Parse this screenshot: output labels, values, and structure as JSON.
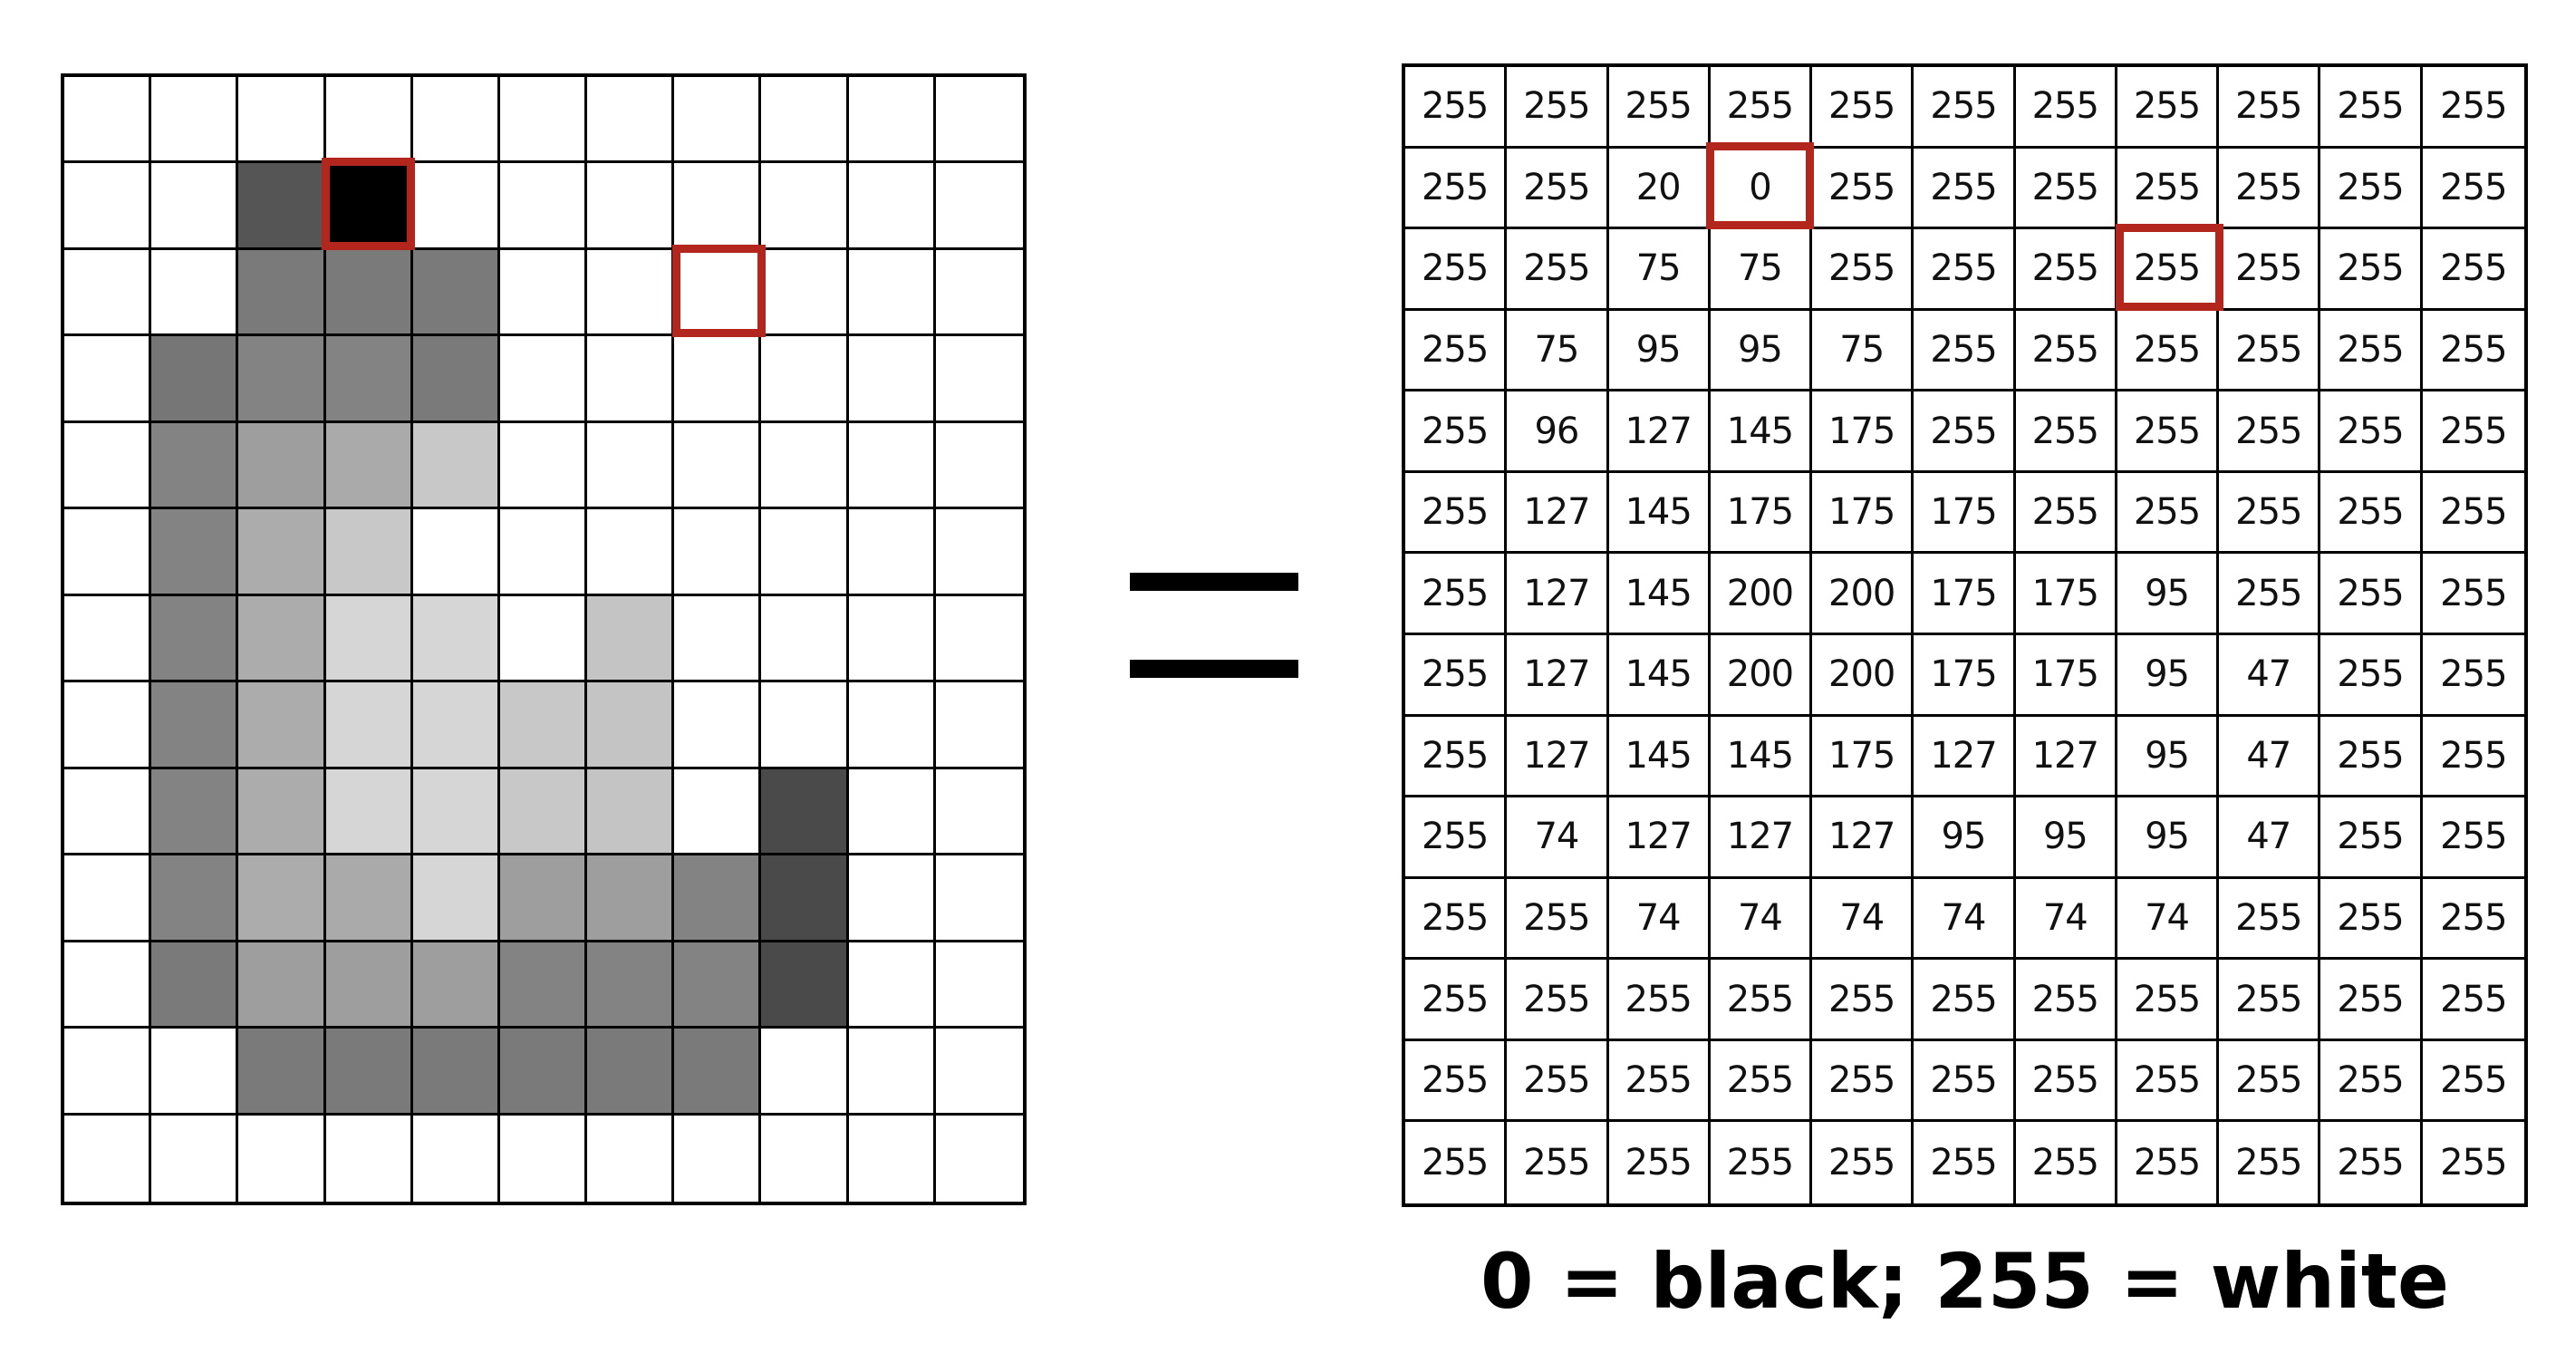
{
  "grid_columns": 11,
  "pixel_rows": 13,
  "value_rows": 14,
  "pixel_values": [
    [
      255,
      255,
      255,
      255,
      255,
      255,
      255,
      255,
      255,
      255,
      255
    ],
    [
      255,
      255,
      85,
      0,
      255,
      255,
      255,
      255,
      255,
      255,
      255
    ],
    [
      255,
      255,
      122,
      122,
      122,
      255,
      255,
      255,
      255,
      255,
      255
    ],
    [
      255,
      118,
      131,
      131,
      122,
      255,
      255,
      255,
      255,
      255,
      255
    ],
    [
      255,
      131,
      158,
      170,
      200,
      255,
      255,
      255,
      255,
      255,
      255
    ],
    [
      255,
      131,
      172,
      200,
      255,
      255,
      255,
      255,
      255,
      255,
      255
    ],
    [
      255,
      131,
      172,
      214,
      214,
      255,
      196,
      255,
      255,
      255,
      255
    ],
    [
      255,
      131,
      172,
      214,
      214,
      200,
      196,
      255,
      255,
      255,
      255
    ],
    [
      255,
      131,
      172,
      214,
      214,
      200,
      196,
      255,
      74,
      255,
      255
    ],
    [
      255,
      131,
      172,
      170,
      214,
      158,
      158,
      131,
      74,
      255,
      255
    ],
    [
      255,
      122,
      158,
      158,
      158,
      131,
      131,
      131,
      74,
      255,
      255
    ],
    [
      255,
      255,
      122,
      122,
      122,
      122,
      122,
      122,
      255,
      255,
      255
    ],
    [
      255,
      255,
      255,
      255,
      255,
      255,
      255,
      255,
      255,
      255,
      255
    ]
  ],
  "value_table": [
    [
      "255",
      "255",
      "255",
      "255",
      "255",
      "255",
      "255",
      "255",
      "255",
      "255",
      "255"
    ],
    [
      "255",
      "255",
      "20",
      "0",
      "255",
      "255",
      "255",
      "255",
      "255",
      "255",
      "255"
    ],
    [
      "255",
      "255",
      "75",
      "75",
      "255",
      "255",
      "255",
      "255",
      "255",
      "255",
      "255"
    ],
    [
      "255",
      "75",
      "95",
      "95",
      "75",
      "255",
      "255",
      "255",
      "255",
      "255",
      "255"
    ],
    [
      "255",
      "96",
      "127",
      "145",
      "175",
      "255",
      "255",
      "255",
      "255",
      "255",
      "255"
    ],
    [
      "255",
      "127",
      "145",
      "175",
      "175",
      "175",
      "255",
      "255",
      "255",
      "255",
      "255"
    ],
    [
      "255",
      "127",
      "145",
      "200",
      "200",
      "175",
      "175",
      "95",
      "255",
      "255",
      "255"
    ],
    [
      "255",
      "127",
      "145",
      "200",
      "200",
      "175",
      "175",
      "95",
      "47",
      "255",
      "255"
    ],
    [
      "255",
      "127",
      "145",
      "145",
      "175",
      "127",
      "127",
      "95",
      "47",
      "255",
      "255"
    ],
    [
      "255",
      "74",
      "127",
      "127",
      "127",
      "95",
      "95",
      "95",
      "47",
      "255",
      "255"
    ],
    [
      "255",
      "255",
      "74",
      "74",
      "74",
      "74",
      "74",
      "74",
      "255",
      "255",
      "255"
    ],
    [
      "255",
      "255",
      "255",
      "255",
      "255",
      "255",
      "255",
      "255",
      "255",
      "255",
      "255"
    ],
    [
      "255",
      "255",
      "255",
      "255",
      "255",
      "255",
      "255",
      "255",
      "255",
      "255",
      "255"
    ],
    [
      "255",
      "255",
      "255",
      "255",
      "255",
      "255",
      "255",
      "255",
      "255",
      "255",
      "255"
    ]
  ],
  "highlighted_cells": [
    {
      "row": 1,
      "col": 3
    },
    {
      "row": 2,
      "col": 7
    }
  ],
  "highlight_color": "#b3261e",
  "legend_caption": "0 = black; 255 = white"
}
